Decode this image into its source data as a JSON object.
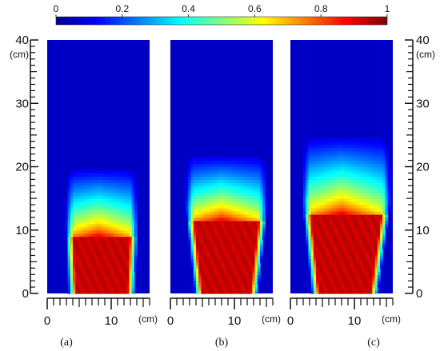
{
  "chart_data": {
    "type": "heatmap",
    "colorscale": "jet",
    "colorbar": {
      "range": [
        0,
        1
      ],
      "tick_labels": [
        "0",
        "0.2",
        "0.4",
        "0.6",
        "0.8",
        "1"
      ],
      "tick_values": [
        0,
        0.2,
        0.4,
        0.6,
        0.8,
        1
      ]
    },
    "y_axis": {
      "range": [
        0,
        40
      ],
      "tick_labels": [
        "0",
        "10",
        "20",
        "30",
        "40"
      ],
      "tick_values": [
        0,
        10,
        20,
        30,
        40
      ],
      "unit": "(cm)"
    },
    "x_axis": {
      "range": [
        0,
        16
      ],
      "tick_labels": [
        "0",
        "10"
      ],
      "tick_values": [
        0,
        10
      ],
      "unit": "(cm)"
    },
    "panels": [
      {
        "label": "(a)",
        "region_bottom_x": [
          4.5,
          12.5
        ],
        "region_top_x": [
          4.0,
          13.0
        ],
        "core_top_y": 11.0,
        "fade_top_y": 20.0
      },
      {
        "label": "(b)",
        "region_bottom_x": [
          5.0,
          12.5
        ],
        "region_top_x": [
          3.5,
          14.0
        ],
        "core_top_y": 13.5,
        "fade_top_y": 22.0
      },
      {
        "label": "(c)",
        "region_bottom_x": [
          4.5,
          12.5
        ],
        "region_top_x": [
          3.0,
          14.5
        ],
        "core_top_y": 14.5,
        "fade_top_y": 25.0
      }
    ]
  }
}
